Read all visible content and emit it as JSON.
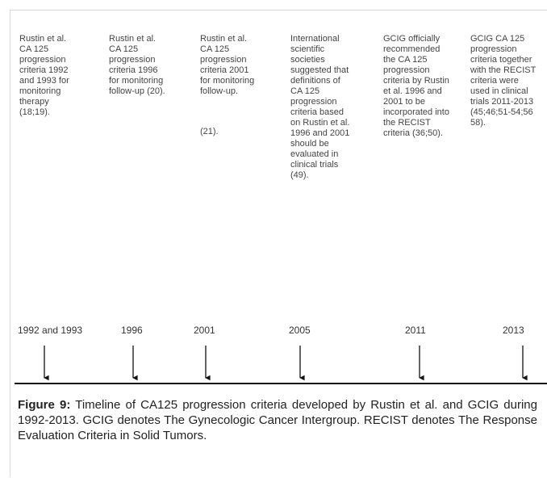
{
  "columns": [
    {
      "lines": [
        "Rustin et al.",
        "CA 125",
        "progression",
        "criteria 1992",
        "and 1993 for",
        "monitoring",
        "therapy",
        "(18;19)."
      ]
    },
    {
      "lines": [
        "Rustin et al.",
        "CA 125",
        "progression",
        "criteria 1996",
        "for monitoring",
        "follow-up (20)."
      ]
    },
    {
      "lines": [
        "Rustin et al.",
        "CA 125",
        "progression",
        "criteria 2001",
        "for monitoring",
        "follow-up."
      ],
      "note": "(21)."
    },
    {
      "lines": [
        "International",
        "scientific",
        "societies",
        "suggested that",
        "definitions of",
        "CA 125",
        "progression",
        "criteria based",
        "on Rustin et al.",
        "1996 and 2001",
        "should be",
        "evaluated in",
        "clinical trials",
        "(49)."
      ]
    },
    {
      "lines": [
        "GCIG officially",
        "recommended",
        "the CA 125",
        "progression",
        "criteria by Rustin",
        "et al. 1996 and",
        "2001 to be",
        "incorporated into",
        "the RECIST",
        "criteria (36;50)."
      ]
    },
    {
      "lines": [
        "GCIG CA 125",
        "progression",
        "criteria together",
        "with the RECIST",
        "criteria were",
        "used in clinical",
        "trials 2011-2013",
        "(45;46;51-54;56",
        "58)."
      ]
    }
  ],
  "years": [
    "1992 and 1993",
    "1996",
    "2001",
    "2005",
    "2011",
    "2013"
  ],
  "caption": {
    "label": "Figure 9:",
    "text": "Timeline of CA125 progression criteria developed by Rustin et al. and GCIG during 1992-2013. GCIG denotes The Gynecologic Cancer Intergroup. RECIST denotes The Response Evaluation Criteria in Solid Tumors."
  }
}
